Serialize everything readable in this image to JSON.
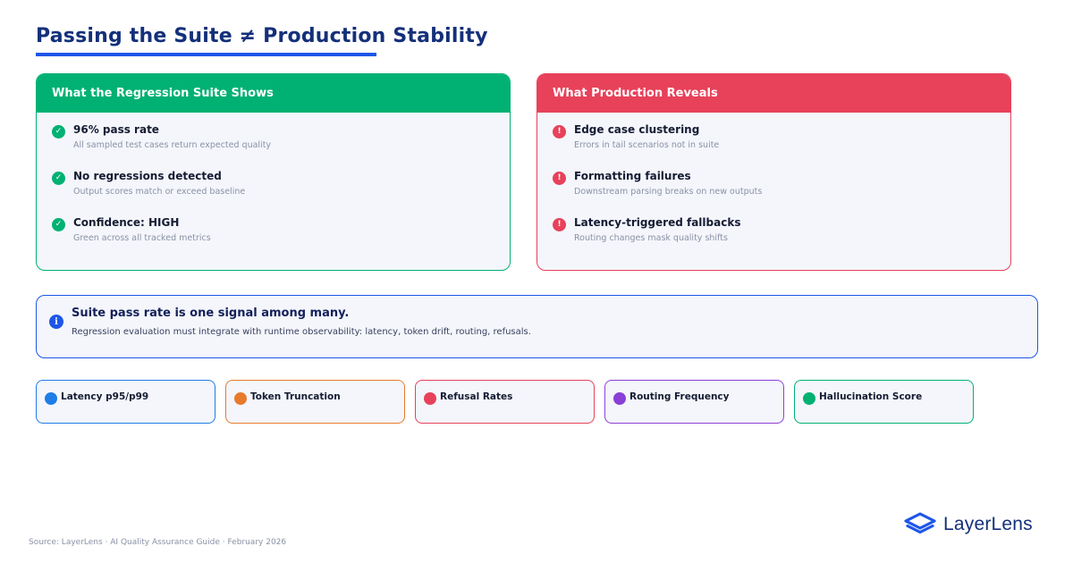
{
  "title": "Passing the Suite ≠ Production Stability",
  "colors": {
    "green": "#00b173",
    "red": "#e8415a",
    "blue": "#1e56e8",
    "orange": "#e87a2c",
    "purple": "#8a3fd6",
    "navy": "#14307a"
  },
  "suite": {
    "header": "What the Regression Suite Shows",
    "items": [
      {
        "title": "96% pass rate",
        "subtitle": "All sampled test cases return expected quality",
        "icon": "check-icon"
      },
      {
        "title": "No regressions detected",
        "subtitle": "Output scores match or exceed baseline",
        "icon": "check-icon"
      },
      {
        "title": "Confidence: HIGH",
        "subtitle": "Green across all tracked metrics",
        "icon": "check-icon"
      }
    ]
  },
  "production": {
    "header": "What Production Reveals",
    "items": [
      {
        "title": "Edge case clustering",
        "subtitle": "Errors in tail scenarios not in suite",
        "icon": "alert-icon"
      },
      {
        "title": "Formatting failures",
        "subtitle": "Downstream parsing breaks on new outputs",
        "icon": "alert-icon"
      },
      {
        "title": "Latency-triggered fallbacks",
        "subtitle": "Routing changes mask quality shifts",
        "icon": "alert-icon"
      }
    ]
  },
  "callout": {
    "title": "Suite pass rate is one signal among many.",
    "text": "Regression evaluation must integrate with runtime observability: latency, token drift, routing, refusals.",
    "icon": "info-icon"
  },
  "signals": [
    {
      "label": "Latency p95/p99",
      "color": "#1e7de8"
    },
    {
      "label": "Token Truncation",
      "color": "#e87a2c"
    },
    {
      "label": "Refusal Rates",
      "color": "#e8415a"
    },
    {
      "label": "Routing Frequency",
      "color": "#8a3fd6"
    },
    {
      "label": "Hallucination Score",
      "color": "#00b173"
    }
  ],
  "footer": "Source: LayerLens  ·  AI Quality Assurance Guide  ·  February 2026",
  "brand": {
    "name": "LayerLens",
    "icon": "layers-logo-icon"
  }
}
